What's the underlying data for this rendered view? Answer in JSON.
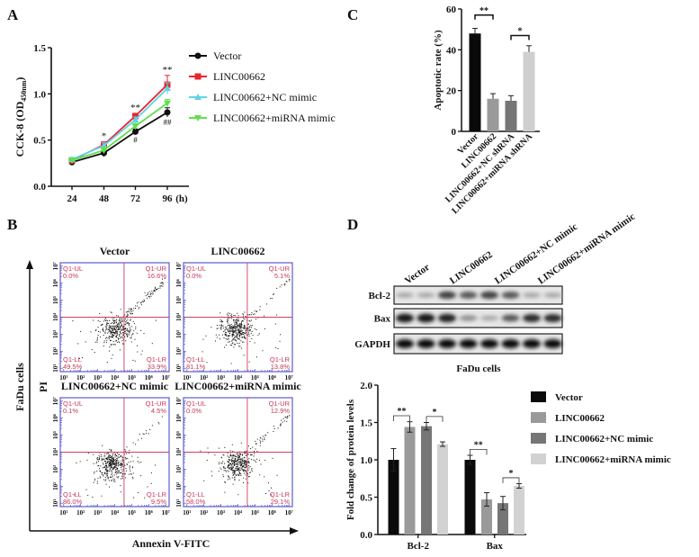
{
  "panels": {
    "a": "A",
    "b": "B",
    "c": "C",
    "d": "D"
  },
  "chart_data": [
    {
      "panel": "A",
      "type": "line",
      "ylabel": "CCK-8 (OD",
      "ylabel_sub": "450nm",
      "ylabel_end": ")",
      "categories": [
        "24",
        "48",
        "72",
        "96"
      ],
      "x_unit": "(h)",
      "ylim": [
        0,
        1.5
      ],
      "yticks": [
        "0.0",
        "0.5",
        "1.0",
        "1.5"
      ],
      "legend": "right",
      "series": [
        {
          "name": "Vector",
          "color": "#111111",
          "marker": "circle",
          "values": [
            0.26,
            0.36,
            0.59,
            0.8
          ],
          "errors": [
            0.03,
            0.04,
            0.03,
            0.05
          ]
        },
        {
          "name": "LINC00662",
          "color": "#e8262f",
          "marker": "square",
          "values": [
            0.28,
            0.45,
            0.76,
            1.1
          ],
          "errors": [
            0.02,
            0.03,
            0.03,
            0.1
          ]
        },
        {
          "name": "LINC00662+NC mimic",
          "color": "#5fd3e8",
          "marker": "triangle-up",
          "values": [
            0.29,
            0.44,
            0.72,
            1.06
          ],
          "errors": [
            0.02,
            0.03,
            0.03,
            0.06
          ]
        },
        {
          "name": "LINC00662+miRNA mimic",
          "color": "#5ee04a",
          "marker": "triangle-down",
          "values": [
            0.28,
            0.39,
            0.65,
            0.9
          ],
          "errors": [
            0.02,
            0.03,
            0.03,
            0.04
          ]
        }
      ],
      "annotations": [
        {
          "category": "48",
          "text": "*",
          "position": "above"
        },
        {
          "category": "72",
          "text": "**",
          "position": "above"
        },
        {
          "category": "96",
          "text": "**",
          "position": "above"
        },
        {
          "category": "72",
          "text": "#",
          "position": "below"
        },
        {
          "category": "96",
          "text": "##",
          "position": "below"
        }
      ]
    },
    {
      "panel": "B",
      "type": "scatter",
      "xlabel": "Annexin V-FITC",
      "ylabel": "PI",
      "side_label": "FaDu cells",
      "ticks": [
        "10¹",
        "10²",
        "10³",
        "10⁴",
        "10⁵",
        "10⁶",
        "10⁷"
      ],
      "quadrant_names": {
        "UL": "Q1-UL",
        "UR": "Q1-UR",
        "LL": "Q1-LL",
        "LR": "Q1-LR"
      },
      "plots": [
        {
          "title": "Vector",
          "UL": "0.0%",
          "UR": "16.6%",
          "LL": "49.5%",
          "LR": "33.9%"
        },
        {
          "title": "LINC00662",
          "UL": "0.0%",
          "UR": "5.1%",
          "LL": "81.1%",
          "LR": "13.8%"
        },
        {
          "title": "LINC00662+NC mimic",
          "UL": "0.1%",
          "UR": "4.5%",
          "LL": "86.0%",
          "LR": "9.5%"
        },
        {
          "title": "LINC00662+miRNA mimic",
          "UL": "0.0%",
          "UR": "12.9%",
          "LL": "58.0%",
          "LR": "29.1%"
        }
      ]
    },
    {
      "panel": "C",
      "type": "bar",
      "ylabel": "Apoptotic rate (%)",
      "categories": [
        "Vector",
        "LINC00662",
        "LINC00662+NC shRNA",
        "LINC00662+miRNA shRNA"
      ],
      "values": [
        48,
        16,
        15,
        39
      ],
      "errors": [
        2.5,
        2.5,
        2.5,
        3
      ],
      "colors": [
        "#0a0a0a",
        "#9a9a9a",
        "#767676",
        "#cfcfcf"
      ],
      "ylim": [
        0,
        60
      ],
      "yticks": [
        "0",
        "20",
        "40",
        "60"
      ],
      "significance": [
        {
          "from": 0,
          "to": 1,
          "text": "**"
        },
        {
          "from": 2,
          "to": 3,
          "text": "*"
        }
      ]
    },
    {
      "panel": "D",
      "type": "bar",
      "ylabel": "Fold change of protein levels",
      "categories": [
        "Bcl-2",
        "Bax"
      ],
      "ylim": [
        0,
        2.0
      ],
      "yticks": [
        "0.0",
        "0.5",
        "1.0",
        "1.5",
        "2.0"
      ],
      "legend": "right",
      "series": [
        {
          "name": "Vector",
          "color": "#0a0a0a",
          "values": [
            1.0,
            1.0
          ],
          "errors": [
            0.15,
            0.06
          ]
        },
        {
          "name": "LINC00662",
          "color": "#9a9a9a",
          "values": [
            1.44,
            0.47
          ],
          "errors": [
            0.07,
            0.09
          ]
        },
        {
          "name": "LINC00662+NC mimic",
          "color": "#767676",
          "values": [
            1.45,
            0.42
          ],
          "errors": [
            0.05,
            0.09
          ]
        },
        {
          "name": "LINC00662+miRNA mimic",
          "color": "#d2d2d2",
          "values": [
            1.21,
            0.65
          ],
          "errors": [
            0.03,
            0.03
          ]
        }
      ],
      "significance": [
        {
          "category": 0,
          "from": 0,
          "to": 1,
          "text": "**"
        },
        {
          "category": 0,
          "from": 2,
          "to": 3,
          "text": "*"
        },
        {
          "category": 1,
          "from": 0,
          "to": 1,
          "text": "**"
        },
        {
          "category": 1,
          "from": 2,
          "to": 3,
          "text": "*"
        }
      ]
    }
  ],
  "western_blot": {
    "lanes": [
      "Vector",
      "LINC00662",
      "LINC00662+NC mimic",
      "LINC00662+miRNA mimic"
    ],
    "rows": [
      {
        "label": "Bcl-2",
        "band_intensity": [
          0.3,
          0.3,
          0.75,
          0.65,
          0.75,
          0.65,
          0.3,
          0.3
        ]
      },
      {
        "label": "Bax",
        "band_intensity": [
          0.95,
          0.95,
          0.9,
          0.4,
          0.3,
          0.65,
          0.85,
          0.85
        ]
      },
      {
        "label": "GAPDH",
        "band_intensity": [
          1,
          1,
          1,
          1,
          1,
          1,
          1,
          1
        ]
      }
    ],
    "caption": "FaDu cells"
  }
}
